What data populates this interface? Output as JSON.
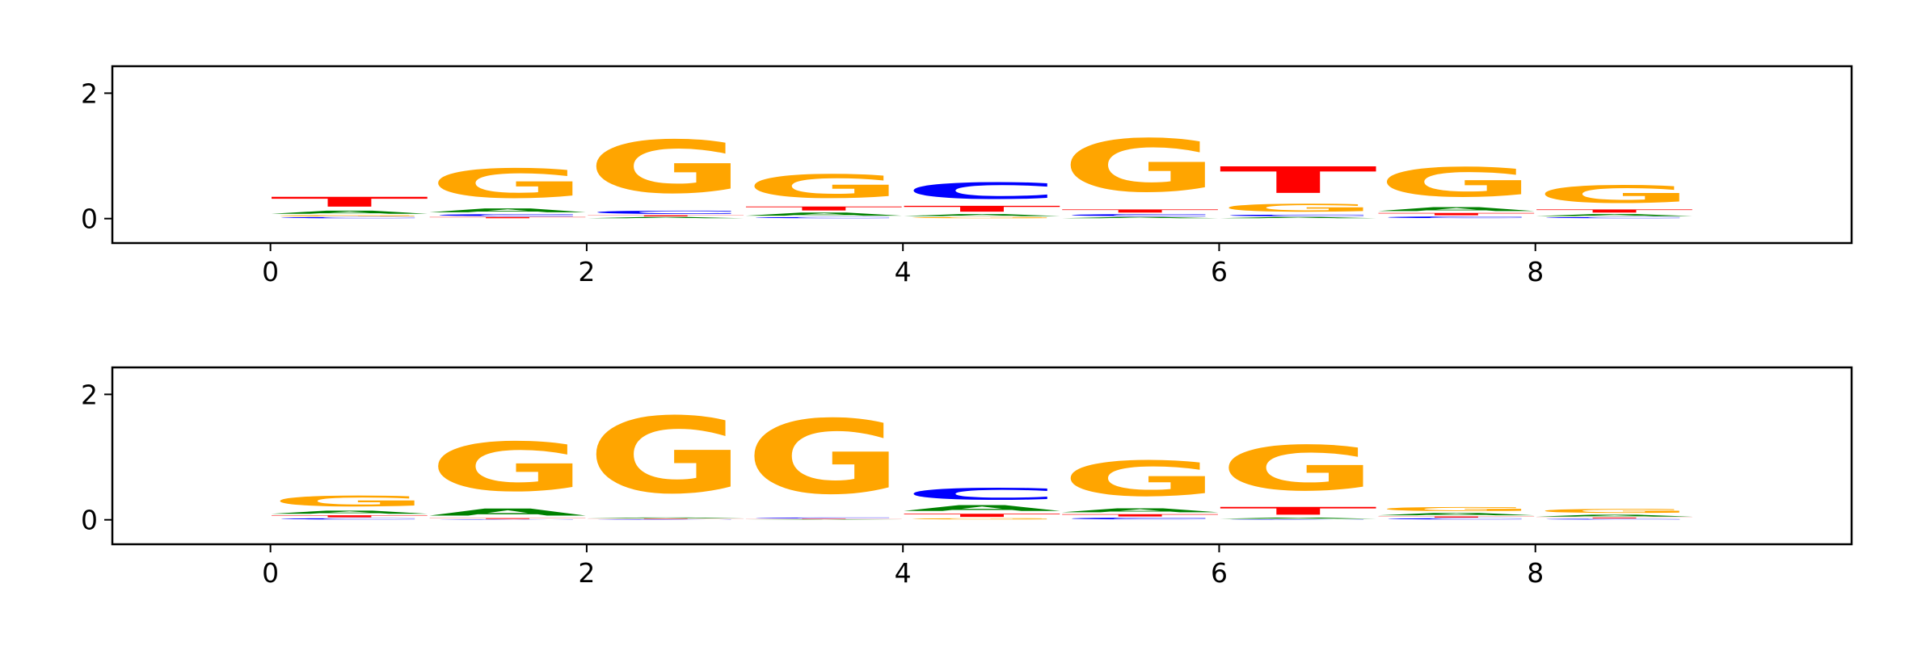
{
  "chart_data": [
    {
      "type": "logo",
      "x": [
        0,
        1,
        2,
        3,
        4,
        5,
        6,
        7,
        8
      ],
      "series": [
        {
          "name": "A",
          "color": "#008000",
          "values": [
            0.08,
            0.1,
            0.03,
            0.08,
            0.05,
            0.03,
            0.03,
            0.1,
            0.05
          ]
        },
        {
          "name": "C",
          "color": "#0000ff",
          "values": [
            0.03,
            0.05,
            0.08,
            0.03,
            0.42,
            0.05,
            0.04,
            0.04,
            0.03
          ]
        },
        {
          "name": "G",
          "color": "#ffa500",
          "values": [
            0.03,
            0.75,
            1.35,
            0.6,
            0.03,
            1.35,
            0.2,
            0.75,
            0.45
          ]
        },
        {
          "name": "T",
          "color": "#ff0000",
          "values": [
            0.25,
            0.03,
            0.03,
            0.1,
            0.15,
            0.08,
            0.68,
            0.06,
            0.08
          ]
        }
      ],
      "xlim": [
        -1,
        10
      ],
      "ylim": [
        -0.39,
        2.43
      ],
      "xticks": [
        0,
        2,
        4,
        6,
        8
      ],
      "yticks": [
        0,
        2
      ]
    },
    {
      "type": "logo",
      "x": [
        0,
        1,
        2,
        3,
        4,
        5,
        6,
        7,
        8
      ],
      "series": [
        {
          "name": "A",
          "color": "#008000",
          "values": [
            0.08,
            0.18,
            0.02,
            0.01,
            0.15,
            0.1,
            0.03,
            0.06,
            0.05
          ]
        },
        {
          "name": "C",
          "color": "#0000ff",
          "values": [
            0.03,
            0.01,
            0.01,
            0.02,
            0.3,
            0.04,
            0.01,
            0.03,
            0.02
          ]
        },
        {
          "name": "G",
          "color": "#ffa500",
          "values": [
            0.27,
            1.25,
            1.95,
            1.9,
            0.03,
            0.9,
            1.15,
            0.1,
            0.1
          ]
        },
        {
          "name": "T",
          "color": "#ff0000",
          "values": [
            0.05,
            0.02,
            0.01,
            0.01,
            0.08,
            0.06,
            0.2,
            0.03,
            0.02
          ]
        }
      ],
      "xlim": [
        -1,
        10
      ],
      "ylim": [
        -0.39,
        2.43
      ],
      "xticks": [
        0,
        2,
        4,
        6,
        8
      ],
      "yticks": [
        0,
        2
      ]
    }
  ]
}
